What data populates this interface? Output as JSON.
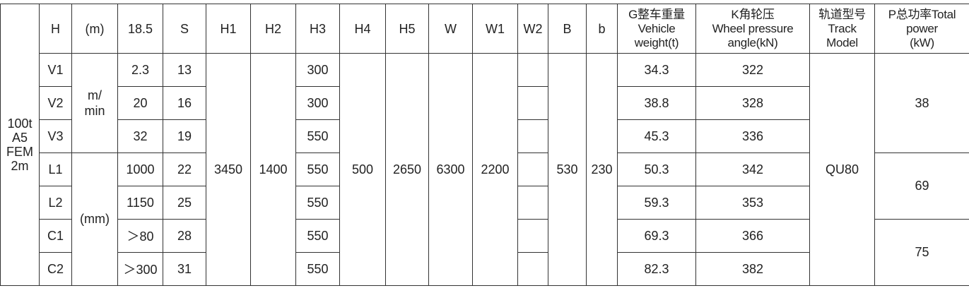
{
  "spec_label": [
    "100t",
    "A5",
    "FEM",
    "2m"
  ],
  "header": {
    "H": "H",
    "unit": "(m)",
    "v185": "18.5",
    "S": "S",
    "H1": "H1",
    "H2": "H2",
    "H3": "H3",
    "H4": "H4",
    "H5": "H5",
    "W": "W",
    "W1": "W1",
    "W2": "W2",
    "B": "B",
    "b": "b",
    "G": [
      "G整车重量",
      "Vehicle",
      "weight(t)"
    ],
    "K": [
      "K角轮压",
      "Wheel pressure",
      "angle(kN)"
    ],
    "track": [
      "轨道型号",
      "Track",
      "Model"
    ],
    "P": [
      "P总功率Total",
      "power",
      "(kW)"
    ]
  },
  "units": {
    "speed": [
      "m/",
      "min"
    ],
    "length": "(mm)"
  },
  "rows": [
    {
      "H": "V1",
      "v185": "2.3",
      "S": "13",
      "H3": "300",
      "W2": "",
      "G": "34.3",
      "K": "322"
    },
    {
      "H": "V2",
      "v185": "20",
      "S": "16",
      "H3": "300",
      "W2": "",
      "G": "38.8",
      "K": "328"
    },
    {
      "H": "V3",
      "v185": "32",
      "S": "19",
      "H3": "550",
      "W2": "",
      "G": "45.3",
      "K": "336"
    },
    {
      "H": "L1",
      "v185": "1000",
      "S": "22",
      "H3": "550",
      "W2": "",
      "G": "50.3",
      "K": "342"
    },
    {
      "H": "L2",
      "v185": "1150",
      "S": "25",
      "H3": "550",
      "W2": "",
      "G": "59.3",
      "K": "353"
    },
    {
      "H": "C1",
      "v185": "＞80",
      "S": "28",
      "H3": "550",
      "W2": "",
      "G": "69.3",
      "K": "366"
    },
    {
      "H": "C2",
      "v185": "＞300",
      "S": "31",
      "H3": "550",
      "W2": "",
      "G": "82.3",
      "K": "382"
    }
  ],
  "shared": {
    "H1": "3450",
    "H2": "1400",
    "H4": "500",
    "H5": "2650",
    "W": "6300",
    "W1": "2200",
    "B": "530",
    "b": "230",
    "track": "QU80"
  },
  "power": [
    "38",
    "69",
    "75"
  ]
}
